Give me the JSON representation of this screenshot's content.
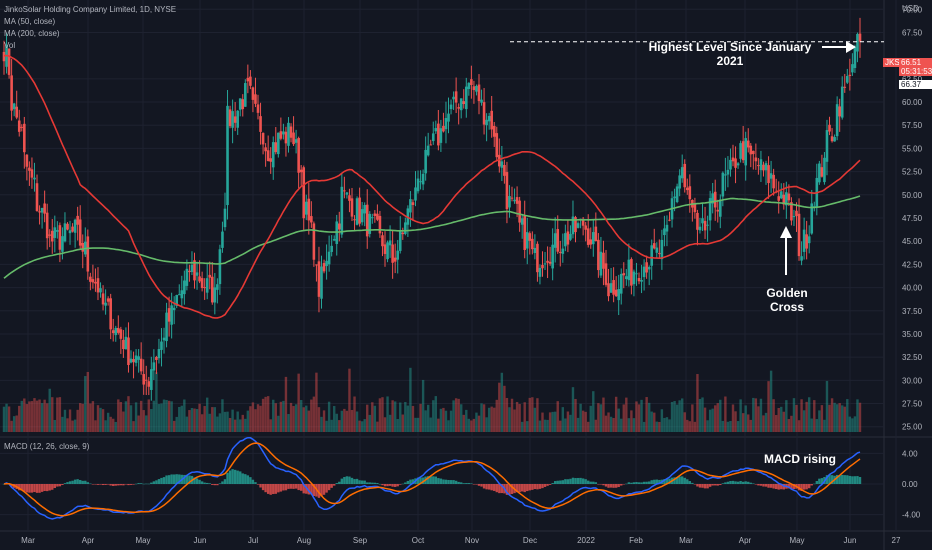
{
  "legend": {
    "title": "JinkoSolar Holding Company Limited, 1D, NYSE",
    "ma50": "MA (50, close)",
    "ma200": "MA (200, close)",
    "vol": "Vol",
    "macd": "MACD (12, 26, close, 9)"
  },
  "axis": {
    "currency": "USD",
    "price_ticks": [
      "70.00",
      "67.50",
      "62.50",
      "60.00",
      "57.50",
      "55.00",
      "52.50",
      "50.00",
      "47.50",
      "45.00",
      "42.50",
      "40.00",
      "37.50",
      "35.00",
      "32.50",
      "30.00",
      "27.50",
      "25.00"
    ],
    "macd_ticks": [
      "4.00",
      "0.00",
      "-4.00"
    ],
    "time_labels": [
      "Mar",
      "Apr",
      "May",
      "Jun",
      "Jul",
      "Aug",
      "Sep",
      "Oct",
      "Nov",
      "Dec",
      "2022",
      "Feb",
      "Mar",
      "Apr",
      "May",
      "Jun",
      "27"
    ]
  },
  "price_tags": {
    "symbol": "JKS",
    "last": "66.51",
    "countdown": "05:31:53",
    "ma_value": "66.37"
  },
  "annotations": {
    "highest": "Highest Level Since January 2021",
    "golden_1": "Golden",
    "golden_2": "Cross",
    "macd": "MACD rising"
  },
  "colors": {
    "background": "#131722",
    "up": "#26a69a",
    "down": "#ef5350",
    "ma50": "#e53935",
    "ma200": "#66bb6a",
    "macd": "#2962ff",
    "signal": "#ff6d00",
    "grid": "#1e2230",
    "axis_text": "#b2b5be"
  },
  "chart_data": {
    "type": "candlestick",
    "title": "JinkoSolar Holding Company Limited, 1D, NYSE",
    "ylim": [
      24,
      71
    ],
    "approx_close_path": [
      {
        "date": "2021-02-24",
        "close": 66
      },
      {
        "date": "2021-03-01",
        "close": 60
      },
      {
        "date": "2021-03-10",
        "close": 52
      },
      {
        "date": "2021-03-22",
        "close": 45
      },
      {
        "date": "2021-04-05",
        "close": 46
      },
      {
        "date": "2021-04-20",
        "close": 38
      },
      {
        "date": "2021-05-01",
        "close": 34
      },
      {
        "date": "2021-05-14",
        "close": 30
      },
      {
        "date": "2021-05-25",
        "close": 36
      },
      {
        "date": "2021-06-07",
        "close": 42
      },
      {
        "date": "2021-06-21",
        "close": 39
      },
      {
        "date": "2021-06-28",
        "close": 58
      },
      {
        "date": "2021-07-08",
        "close": 61
      },
      {
        "date": "2021-07-20",
        "close": 55
      },
      {
        "date": "2021-08-02",
        "close": 57
      },
      {
        "date": "2021-08-17",
        "close": 40
      },
      {
        "date": "2021-08-30",
        "close": 50
      },
      {
        "date": "2021-09-13",
        "close": 47
      },
      {
        "date": "2021-09-27",
        "close": 43
      },
      {
        "date": "2021-10-11",
        "close": 52
      },
      {
        "date": "2021-10-25",
        "close": 58
      },
      {
        "date": "2021-11-08",
        "close": 62
      },
      {
        "date": "2021-11-19",
        "close": 58
      },
      {
        "date": "2021-11-30",
        "close": 49
      },
      {
        "date": "2021-12-14",
        "close": 43
      },
      {
        "date": "2021-12-28",
        "close": 45
      },
      {
        "date": "2022-01-10",
        "close": 47
      },
      {
        "date": "2022-01-24",
        "close": 40
      },
      {
        "date": "2022-02-07",
        "close": 42
      },
      {
        "date": "2022-02-22",
        "close": 44
      },
      {
        "date": "2022-03-04",
        "close": 53
      },
      {
        "date": "2022-03-14",
        "close": 45
      },
      {
        "date": "2022-03-25",
        "close": 50
      },
      {
        "date": "2022-04-07",
        "close": 55
      },
      {
        "date": "2022-04-21",
        "close": 52
      },
      {
        "date": "2022-05-02",
        "close": 49
      },
      {
        "date": "2022-05-10",
        "close": 44
      },
      {
        "date": "2022-05-20",
        "close": 53
      },
      {
        "date": "2022-05-31",
        "close": 60
      },
      {
        "date": "2022-06-06",
        "close": 64
      },
      {
        "date": "2022-06-10",
        "close": 66.51
      }
    ],
    "ma50": {
      "start": 65,
      "end": 54
    },
    "ma200": {
      "start": 41,
      "end": 50
    },
    "golden_cross": {
      "date": "2022-04-28",
      "price": 49.5
    },
    "highest_level": 66.5,
    "macd_range": [
      -4,
      4
    ]
  }
}
